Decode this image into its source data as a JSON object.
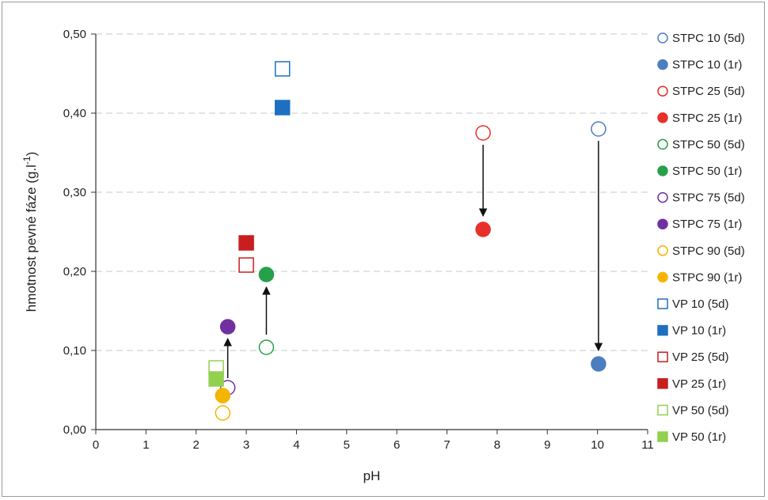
{
  "chart_data": {
    "type": "scatter",
    "title": "",
    "xlabel": "pH",
    "ylabel": "hmotnost pevné fáze (g.l-1)",
    "xlim": [
      0,
      11
    ],
    "ylim": [
      0,
      0.5
    ],
    "x_ticks": [
      "0",
      "1",
      "2",
      "3",
      "4",
      "5",
      "6",
      "7",
      "8",
      "9",
      "10",
      "11"
    ],
    "y_ticks": [
      "0,00",
      "0,10",
      "0,20",
      "0,30",
      "0,40",
      "0,50"
    ],
    "grid": "horizontal dashed",
    "legend_position": "right",
    "series": [
      {
        "name": "STPC 10 (5d)",
        "marker": "circle-open",
        "color": "#4a7ec0",
        "points": [
          [
            10.02,
            0.38
          ]
        ]
      },
      {
        "name": "STPC 10 (1r)",
        "marker": "circle-filled",
        "color": "#4a7ec0",
        "points": [
          [
            10.02,
            0.083
          ]
        ]
      },
      {
        "name": "STPC 25 (5d)",
        "marker": "circle-open",
        "color": "#e8302a",
        "points": [
          [
            7.72,
            0.375
          ]
        ]
      },
      {
        "name": "STPC 25 (1r)",
        "marker": "circle-filled",
        "color": "#e8302a",
        "points": [
          [
            7.72,
            0.253
          ]
        ]
      },
      {
        "name": "STPC 50 (5d)",
        "marker": "circle-open",
        "color": "#27a04a",
        "points": [
          [
            3.4,
            0.104
          ]
        ]
      },
      {
        "name": "STPC 50 (1r)",
        "marker": "circle-filled",
        "color": "#27a04a",
        "points": [
          [
            3.4,
            0.196
          ]
        ]
      },
      {
        "name": "STPC 75 (5d)",
        "marker": "circle-open",
        "color": "#7030a0",
        "points": [
          [
            2.63,
            0.053
          ]
        ]
      },
      {
        "name": "STPC 75 (1r)",
        "marker": "circle-filled",
        "color": "#7030a0",
        "points": [
          [
            2.63,
            0.13
          ]
        ]
      },
      {
        "name": "STPC 90 (5d)",
        "marker": "circle-open",
        "color": "#f5b400",
        "points": [
          [
            2.53,
            0.021
          ]
        ]
      },
      {
        "name": "STPC 90 (1r)",
        "marker": "circle-filled",
        "color": "#f5b400",
        "points": [
          [
            2.53,
            0.043
          ]
        ]
      },
      {
        "name": "VP 10 (5d)",
        "marker": "square-open",
        "color": "#1f6fc0",
        "points": [
          [
            3.72,
            0.456
          ]
        ]
      },
      {
        "name": "VP 10 (1r)",
        "marker": "square-filled",
        "color": "#1f6fc0",
        "points": [
          [
            3.72,
            0.407
          ]
        ]
      },
      {
        "name": "VP 25 (5d)",
        "marker": "square-open",
        "color": "#c81e1e",
        "points": [
          [
            3.0,
            0.208
          ]
        ]
      },
      {
        "name": "VP 25 (1r)",
        "marker": "square-filled",
        "color": "#c81e1e",
        "points": [
          [
            3.0,
            0.236
          ]
        ]
      },
      {
        "name": "VP 50 (5d)",
        "marker": "square-open",
        "color": "#92d050",
        "points": [
          [
            2.4,
            0.078
          ]
        ]
      },
      {
        "name": "VP 50 (1r)",
        "marker": "square-filled",
        "color": "#92d050",
        "points": [
          [
            2.4,
            0.064
          ]
        ]
      }
    ],
    "arrows": [
      {
        "from": [
          10.02,
          0.365
        ],
        "to": [
          10.02,
          0.1
        ]
      },
      {
        "from": [
          7.72,
          0.36
        ],
        "to": [
          7.72,
          0.27
        ]
      },
      {
        "from": [
          3.4,
          0.12
        ],
        "to": [
          3.4,
          0.18
        ]
      },
      {
        "from": [
          2.63,
          0.065
        ],
        "to": [
          2.63,
          0.115
        ]
      }
    ]
  }
}
